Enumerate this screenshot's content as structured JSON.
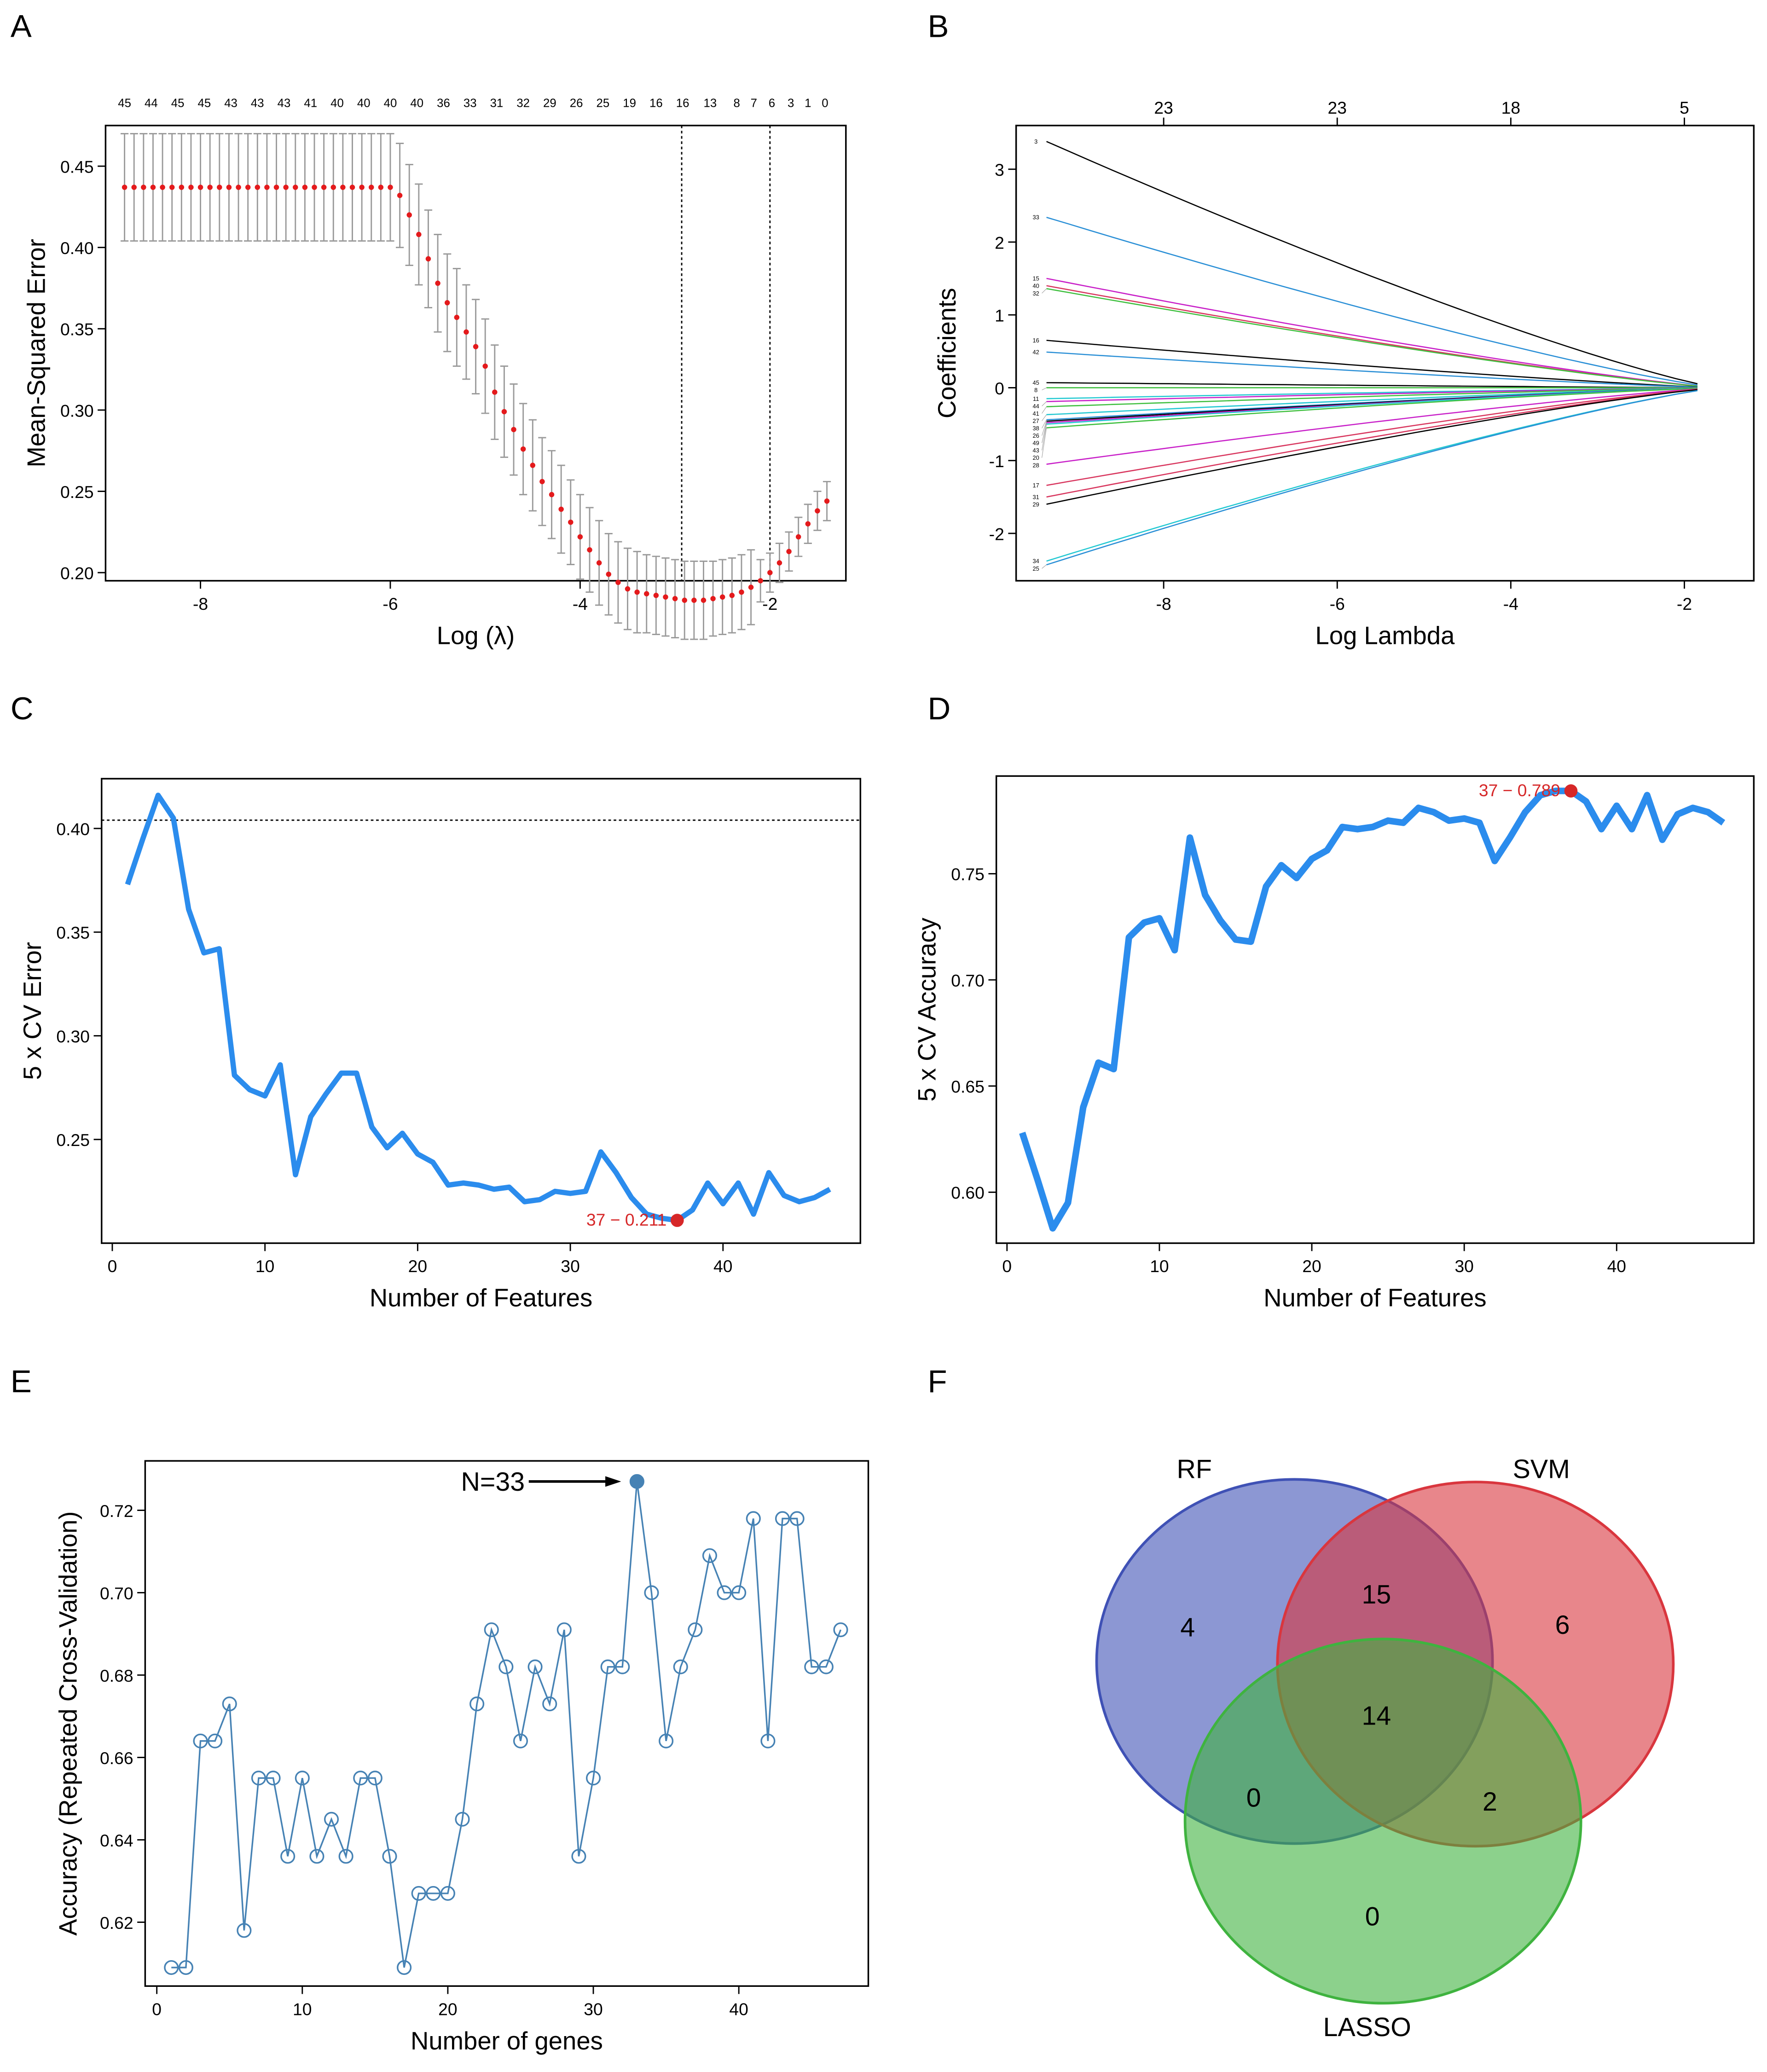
{
  "panels": {
    "A": "A",
    "B": "B",
    "C": "C",
    "D": "D",
    "E": "E",
    "F": "F"
  },
  "chart_data": [
    {
      "id": "A",
      "type": "line",
      "title": "",
      "xlabel": "Log (λ)",
      "ylabel": "Mean-Squared Error",
      "xlim": [
        -9.0,
        -1.2
      ],
      "ylim": [
        0.195,
        0.475
      ],
      "xticks": [
        "-8",
        "-6",
        "-4",
        "-2"
      ],
      "yticks": [
        "0.20",
        "0.25",
        "0.30",
        "0.35",
        "0.40",
        "0.45"
      ],
      "x_start": -8.8,
      "x_step": 0.1,
      "mse": [
        0.437,
        0.437,
        0.437,
        0.437,
        0.437,
        0.437,
        0.437,
        0.437,
        0.437,
        0.437,
        0.437,
        0.437,
        0.437,
        0.437,
        0.437,
        0.437,
        0.437,
        0.437,
        0.437,
        0.437,
        0.437,
        0.437,
        0.437,
        0.437,
        0.437,
        0.437,
        0.437,
        0.437,
        0.437,
        0.432,
        0.42,
        0.408,
        0.393,
        0.378,
        0.366,
        0.357,
        0.348,
        0.339,
        0.327,
        0.311,
        0.299,
        0.288,
        0.276,
        0.266,
        0.256,
        0.248,
        0.239,
        0.231,
        0.222,
        0.214,
        0.206,
        0.199,
        0.194,
        0.19,
        0.188,
        0.187,
        0.186,
        0.185,
        0.184,
        0.183,
        0.183,
        0.183,
        0.184,
        0.185,
        0.186,
        0.188,
        0.191,
        0.195,
        0.2,
        0.206,
        0.213,
        0.222,
        0.23,
        0.238,
        0.244
      ],
      "err": [
        0.033,
        0.033,
        0.033,
        0.033,
        0.033,
        0.033,
        0.033,
        0.033,
        0.033,
        0.033,
        0.033,
        0.033,
        0.033,
        0.033,
        0.033,
        0.033,
        0.033,
        0.033,
        0.033,
        0.033,
        0.033,
        0.033,
        0.033,
        0.033,
        0.033,
        0.033,
        0.033,
        0.033,
        0.033,
        0.032,
        0.031,
        0.031,
        0.03,
        0.03,
        0.03,
        0.03,
        0.029,
        0.029,
        0.029,
        0.029,
        0.028,
        0.028,
        0.028,
        0.028,
        0.027,
        0.027,
        0.027,
        0.026,
        0.026,
        0.026,
        0.026,
        0.025,
        0.025,
        0.025,
        0.025,
        0.024,
        0.024,
        0.024,
        0.024,
        0.024,
        0.024,
        0.024,
        0.023,
        0.023,
        0.023,
        0.023,
        0.023,
        0.013,
        0.012,
        0.012,
        0.012,
        0.012,
        0.012,
        0.012,
        0.012
      ],
      "vlines": [
        -2.93,
        -2.0
      ],
      "top_axis": [
        {
          "x": -8.8,
          "label": "45"
        },
        {
          "x": -8.52,
          "label": "44"
        },
        {
          "x": -8.24,
          "label": "45"
        },
        {
          "x": -7.96,
          "label": "45"
        },
        {
          "x": -7.68,
          "label": "43"
        },
        {
          "x": -7.4,
          "label": "43"
        },
        {
          "x": -7.12,
          "label": "43"
        },
        {
          "x": -6.84,
          "label": "41"
        },
        {
          "x": -6.56,
          "label": "40"
        },
        {
          "x": -6.28,
          "label": "40"
        },
        {
          "x": -6.0,
          "label": "40"
        },
        {
          "x": -5.72,
          "label": "40"
        },
        {
          "x": -5.44,
          "label": "36"
        },
        {
          "x": -5.16,
          "label": "33"
        },
        {
          "x": -4.88,
          "label": "31"
        },
        {
          "x": -4.6,
          "label": "32"
        },
        {
          "x": -4.32,
          "label": "29"
        },
        {
          "x": -4.04,
          "label": "26"
        },
        {
          "x": -3.76,
          "label": "25"
        },
        {
          "x": -3.48,
          "label": "19"
        },
        {
          "x": -3.2,
          "label": "16"
        },
        {
          "x": -2.92,
          "label": "16"
        },
        {
          "x": -2.63,
          "label": "13"
        },
        {
          "x": -2.35,
          "label": "8"
        },
        {
          "x": -2.17,
          "label": "7"
        },
        {
          "x": -1.98,
          "label": "6"
        },
        {
          "x": -1.78,
          "label": "3"
        },
        {
          "x": -1.6,
          "label": "1"
        },
        {
          "x": -1.42,
          "label": "0"
        }
      ],
      "colors": {
        "point": "#e41a1c",
        "errorbar": "#9a9a9a"
      }
    },
    {
      "id": "B",
      "type": "line",
      "title": "",
      "xlabel": "Log Lambda",
      "ylabel": "Coefficients",
      "xlim": [
        -9.7,
        -1.2
      ],
      "ylim": [
        -2.65,
        3.6
      ],
      "xticks": [
        "-8",
        "-6",
        "-4",
        "-2"
      ],
      "yticks": [
        "-2",
        "-1",
        "0",
        "1",
        "2",
        "3"
      ],
      "x_start": -9.35,
      "x_zero": -1.6,
      "top_axis": [
        {
          "x": -8,
          "label": "23"
        },
        {
          "x": -6,
          "label": "23"
        },
        {
          "x": -4,
          "label": "18"
        },
        {
          "x": -2,
          "label": "5"
        }
      ],
      "series": [
        {
          "name": "3",
          "start": 3.38,
          "color": "#000000"
        },
        {
          "name": "33",
          "start": 2.34,
          "color": "#2a8fd6"
        },
        {
          "name": "15",
          "start": 1.5,
          "color": "#c81fc8"
        },
        {
          "name": "40",
          "start": 1.4,
          "color": "#d8365e"
        },
        {
          "name": "32",
          "start": 1.36,
          "color": "#3fbf3f"
        },
        {
          "name": "16",
          "start": 0.65,
          "color": "#000000"
        },
        {
          "name": "42",
          "start": 0.49,
          "color": "#2a8fd6"
        },
        {
          "name": "45",
          "start": 0.07,
          "color": "#000000"
        },
        {
          "name": "8",
          "start": 0.0,
          "color": "#3fbf3f"
        },
        {
          "name": "11",
          "start": -0.15,
          "color": "#22c8d2"
        },
        {
          "name": "44",
          "start": -0.19,
          "color": "#c81fc8"
        },
        {
          "name": "41",
          "start": -0.26,
          "color": "#3fbf3f"
        },
        {
          "name": "27",
          "start": -0.37,
          "color": "#22c8d2"
        },
        {
          "name": "38",
          "start": -0.44,
          "color": "#2a8fd6"
        },
        {
          "name": "26",
          "start": -0.46,
          "color": "#000000"
        },
        {
          "name": "49",
          "start": -0.48,
          "color": "#c81fc8"
        },
        {
          "name": "43",
          "start": -0.5,
          "color": "#22c8d2"
        },
        {
          "name": "20",
          "start": -0.55,
          "color": "#3fbf3f"
        },
        {
          "name": "28",
          "start": -1.05,
          "color": "#c81fc8"
        },
        {
          "name": "17",
          "start": -1.34,
          "color": "#d8365e"
        },
        {
          "name": "31",
          "start": -1.5,
          "color": "#d8365e"
        },
        {
          "name": "29",
          "start": -1.6,
          "color": "#000000"
        },
        {
          "name": "34",
          "start": -2.38,
          "color": "#22c8d2"
        },
        {
          "name": "25",
          "start": -2.43,
          "color": "#2a8fd6"
        }
      ]
    },
    {
      "id": "C",
      "type": "line",
      "title": "",
      "xlabel": "Number of Features",
      "ylabel": "5 x CV Error",
      "xlim": [
        -0.7,
        49
      ],
      "ylim": [
        0.2,
        0.424
      ],
      "xticks": [
        "0",
        "10",
        "20",
        "30",
        "40"
      ],
      "yticks": [
        "0.25",
        "0.30",
        "0.35",
        "0.40"
      ],
      "x": [
        1,
        2,
        3,
        4,
        5,
        6,
        7,
        8,
        9,
        10,
        11,
        12,
        13,
        14,
        15,
        16,
        17,
        18,
        19,
        20,
        21,
        22,
        23,
        24,
        25,
        26,
        27,
        28,
        29,
        30,
        31,
        32,
        33,
        34,
        35,
        36,
        37,
        38,
        39,
        40,
        41,
        42,
        43,
        44,
        45,
        46,
        47
      ],
      "values": [
        0.373,
        0.395,
        0.416,
        0.405,
        0.361,
        0.34,
        0.342,
        0.281,
        0.274,
        0.271,
        0.286,
        0.233,
        0.261,
        0.272,
        0.282,
        0.282,
        0.256,
        0.246,
        0.253,
        0.243,
        0.239,
        0.228,
        0.229,
        0.228,
        0.226,
        0.227,
        0.22,
        0.221,
        0.225,
        0.224,
        0.225,
        0.244,
        0.234,
        0.222,
        0.214,
        0.212,
        0.211,
        0.216,
        0.229,
        0.219,
        0.229,
        0.214,
        0.234,
        0.223,
        0.22,
        0.222,
        0.226
      ],
      "hline": 0.404,
      "highlight": {
        "x": 37,
        "y": 0.211,
        "label": "37 − 0.211"
      },
      "colors": {
        "line": "#2b8ced",
        "highlight": "#d62728"
      }
    },
    {
      "id": "D",
      "type": "line",
      "title": "",
      "xlabel": "Number of Features",
      "ylabel": "5 x CV Accuracy",
      "xlim": [
        -0.7,
        49
      ],
      "ylim": [
        0.576,
        0.796
      ],
      "xticks": [
        "0",
        "10",
        "20",
        "30",
        "40"
      ],
      "yticks": [
        "0.60",
        "0.65",
        "0.70",
        "0.75"
      ],
      "x": [
        1,
        2,
        3,
        4,
        5,
        6,
        7,
        8,
        9,
        10,
        11,
        12,
        13,
        14,
        15,
        16,
        17,
        18,
        19,
        20,
        21,
        22,
        23,
        24,
        25,
        26,
        27,
        28,
        29,
        30,
        31,
        32,
        33,
        34,
        35,
        36,
        37,
        38,
        39,
        40,
        41,
        42,
        43,
        44,
        45,
        46,
        47
      ],
      "values": [
        0.628,
        0.606,
        0.583,
        0.595,
        0.64,
        0.661,
        0.658,
        0.72,
        0.727,
        0.729,
        0.714,
        0.767,
        0.74,
        0.728,
        0.719,
        0.718,
        0.744,
        0.754,
        0.748,
        0.757,
        0.761,
        0.772,
        0.771,
        0.772,
        0.775,
        0.774,
        0.781,
        0.779,
        0.775,
        0.776,
        0.774,
        0.756,
        0.767,
        0.779,
        0.787,
        0.789,
        0.789,
        0.784,
        0.771,
        0.782,
        0.771,
        0.787,
        0.766,
        0.778,
        0.781,
        0.779,
        0.774
      ],
      "highlight": {
        "x": 37,
        "y": 0.789,
        "label": "37 − 0.789"
      },
      "colors": {
        "line": "#2b8ced",
        "highlight": "#d62728"
      }
    },
    {
      "id": "E",
      "type": "line",
      "title": "",
      "xlabel": "Number of genes",
      "ylabel": "Accuracy (Repeated Cross-Validation)",
      "xlim": [
        -0.8,
        48.9
      ],
      "ylim": [
        0.6045,
        0.732
      ],
      "xticks": [
        "0",
        "10",
        "20",
        "30",
        "40"
      ],
      "yticks": [
        "0.62",
        "0.64",
        "0.66",
        "0.68",
        "0.70",
        "0.72"
      ],
      "x": [
        1,
        2,
        3,
        4,
        5,
        6,
        7,
        8,
        9,
        10,
        11,
        12,
        13,
        14,
        15,
        16,
        17,
        18,
        19,
        20,
        21,
        22,
        23,
        24,
        25,
        26,
        27,
        28,
        29,
        30,
        31,
        32,
        33,
        34,
        35,
        36,
        37,
        38,
        39,
        40,
        41,
        42,
        43,
        44,
        45,
        46,
        47
      ],
      "values": [
        0.609,
        0.609,
        0.664,
        0.664,
        0.673,
        0.618,
        0.655,
        0.655,
        0.636,
        0.655,
        0.636,
        0.645,
        0.636,
        0.655,
        0.655,
        0.636,
        0.609,
        0.627,
        0.627,
        0.627,
        0.645,
        0.673,
        0.691,
        0.682,
        0.664,
        0.682,
        0.673,
        0.691,
        0.636,
        0.655,
        0.682,
        0.682,
        0.727,
        0.7,
        0.664,
        0.682,
        0.691,
        0.709,
        0.7,
        0.7,
        0.718,
        0.664,
        0.718,
        0.718,
        0.682,
        0.682,
        0.691
      ],
      "highlight": {
        "x": 33,
        "y": 0.727,
        "label": "N=33"
      },
      "colors": {
        "line": "#4682b4"
      }
    },
    {
      "id": "F",
      "type": "venn",
      "sets": [
        {
          "name": "RF",
          "color": "#3f51b5"
        },
        {
          "name": "SVM",
          "color": "#d9363e"
        },
        {
          "name": "LASSO",
          "color": "#3fb33f"
        }
      ],
      "regions": {
        "RF_only": "4",
        "SVM_only": "6",
        "LASSO_only": "0",
        "RF_SVM": "15",
        "RF_LASSO": "0",
        "SVM_LASSO": "2",
        "RF_SVM_LASSO": "14"
      }
    }
  ]
}
